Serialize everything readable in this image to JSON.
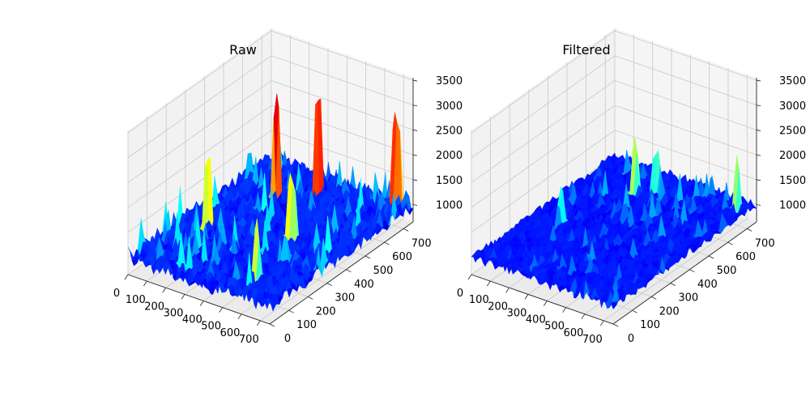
{
  "chart_data": [
    {
      "type": "surface",
      "title": "Raw",
      "xlabel": "",
      "ylabel": "",
      "zlabel": "",
      "x_ticks": [
        0,
        100,
        200,
        300,
        400,
        500,
        600,
        700
      ],
      "y_ticks": [
        0,
        100,
        200,
        300,
        400,
        500,
        600,
        700
      ],
      "z_ticks": [
        1000,
        1500,
        2000,
        2500,
        3000,
        3500
      ],
      "xlim": [
        0,
        750
      ],
      "ylim": [
        0,
        750
      ],
      "zlim": [
        650,
        3550
      ],
      "colormap": "jet",
      "baseline_level": 1000,
      "noise_amplitude": 420,
      "peaks": [
        {
          "x": 220,
          "y": 560,
          "z": 3150
        },
        {
          "x": 360,
          "y": 640,
          "z": 3250
        },
        {
          "x": 690,
          "y": 720,
          "z": 3050
        },
        {
          "x": 120,
          "y": 300,
          "z": 2650
        },
        {
          "x": 480,
          "y": 380,
          "z": 2500
        },
        {
          "x": 560,
          "y": 120,
          "z": 2300
        }
      ],
      "grid": true
    },
    {
      "type": "surface",
      "title": "Filtered",
      "xlabel": "",
      "ylabel": "",
      "zlabel": "",
      "x_ticks": [
        0,
        100,
        200,
        300,
        400,
        500,
        600,
        700
      ],
      "y_ticks": [
        0,
        100,
        200,
        300,
        400,
        500,
        600,
        700
      ],
      "z_ticks": [
        1000,
        1500,
        2000,
        2500,
        3000,
        3500
      ],
      "xlim": [
        0,
        750
      ],
      "ylim": [
        0,
        750
      ],
      "zlim": [
        650,
        3550
      ],
      "colormap": "jet",
      "baseline_level": 1000,
      "noise_amplitude": 260,
      "peaks": [
        {
          "x": 260,
          "y": 600,
          "z": 2250
        },
        {
          "x": 330,
          "y": 640,
          "z": 2150
        },
        {
          "x": 700,
          "y": 700,
          "z": 2150
        },
        {
          "x": 150,
          "y": 320,
          "z": 1950
        }
      ],
      "grid": true
    }
  ]
}
